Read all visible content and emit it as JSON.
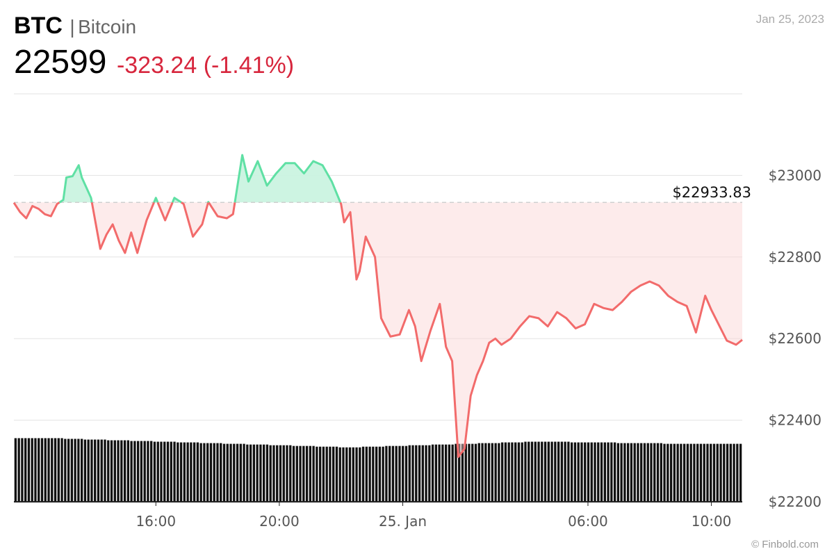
{
  "header": {
    "symbol": "BTC",
    "separator": "|",
    "name": "Bitcoin",
    "price": "22599",
    "change": "-323.24 (-1.41%)",
    "date": "Jan 25, 2023",
    "credit": "© Finbold.com"
  },
  "colors": {
    "up": "#5fe0a4",
    "up_fill": "#c8f3df",
    "down": "#f26b6b",
    "down_fill": "#fbd3d3",
    "change_text": "#d7263d"
  },
  "chart_data": {
    "type": "line",
    "ylim": [
      22200,
      23200
    ],
    "y_ticks": [
      22200,
      22400,
      22600,
      22800,
      23000
    ],
    "y_tick_labels": [
      "$22200",
      "$22400",
      "$22600",
      "$22800",
      "$23000"
    ],
    "x_tick_labels": [
      "16:00",
      "20:00",
      "25. Jan",
      "06:00",
      "10:00"
    ],
    "x_tick_hours": [
      16,
      20,
      24,
      30,
      34
    ],
    "x_range_hours": [
      11.4,
      35.0
    ],
    "reference_value": 22933.83,
    "reference_label": "$22933.83",
    "grid": true,
    "series": [
      {
        "x": [
          11.4,
          11.6,
          11.8,
          12.0,
          12.2,
          12.4,
          12.6,
          12.8,
          13.0,
          13.1,
          13.3,
          13.5,
          13.6,
          13.9,
          14.2,
          14.4,
          14.6,
          14.8,
          15.0,
          15.2,
          15.4,
          15.7,
          16.0,
          16.3,
          16.6,
          16.9,
          17.2,
          17.5,
          17.7,
          18.0,
          18.3,
          18.5,
          18.8,
          19.0,
          19.3,
          19.6,
          19.9,
          20.2,
          20.5,
          20.8,
          21.1,
          21.4,
          21.7,
          22.0,
          22.1,
          22.3,
          22.5,
          22.6,
          22.8,
          23.1,
          23.3,
          23.6,
          23.9,
          24.2,
          24.4,
          24.6,
          24.9,
          25.2,
          25.4,
          25.6,
          25.8,
          26.0,
          26.2,
          26.4,
          26.6,
          26.8,
          27.0,
          27.2,
          27.5,
          27.8,
          28.1,
          28.4,
          28.7,
          29.0,
          29.3,
          29.6,
          29.9,
          30.2,
          30.5,
          30.8,
          31.1,
          31.4,
          31.7,
          32.0,
          32.3,
          32.6,
          32.9,
          33.2,
          33.5,
          33.8,
          34.0,
          34.2,
          34.5,
          34.8,
          35.0
        ],
        "values": [
          22933,
          22910,
          22895,
          22925,
          22918,
          22905,
          22900,
          22930,
          22940,
          22995,
          22998,
          23025,
          22995,
          22945,
          22820,
          22855,
          22880,
          22840,
          22810,
          22860,
          22810,
          22890,
          22945,
          22890,
          22945,
          22930,
          22850,
          22880,
          22935,
          22900,
          22895,
          22905,
          23050,
          22985,
          23035,
          22975,
          23005,
          23030,
          23030,
          23005,
          23035,
          23025,
          22985,
          22930,
          22885,
          22910,
          22745,
          22765,
          22850,
          22800,
          22650,
          22605,
          22610,
          22670,
          22630,
          22545,
          22620,
          22685,
          22580,
          22545,
          22310,
          22330,
          22460,
          22510,
          22545,
          22590,
          22600,
          22585,
          22600,
          22630,
          22655,
          22650,
          22630,
          22665,
          22650,
          22625,
          22635,
          22685,
          22675,
          22670,
          22690,
          22715,
          22730,
          22740,
          22730,
          22705,
          22690,
          22680,
          22615,
          22705,
          22670,
          22640,
          22595,
          22585,
          22597
        ]
      }
    ],
    "volume_values": [
      78,
      78,
      78,
      78,
      78,
      78,
      78,
      78,
      78,
      78,
      78,
      78,
      78,
      78,
      78,
      77,
      77,
      77,
      77,
      77,
      77,
      76,
      76,
      76,
      76,
      76,
      76,
      76,
      75,
      75,
      75,
      75,
      75,
      75,
      75,
      74,
      74,
      74,
      74,
      74,
      74,
      74,
      73,
      73,
      73,
      73,
      73,
      73,
      73,
      72,
      72,
      72,
      72,
      72,
      72,
      72,
      71,
      71,
      71,
      71,
      71,
      71,
      71,
      70,
      70,
      70,
      70,
      70,
      70,
      70,
      69,
      69,
      69,
      69,
      69,
      69,
      69,
      68,
      68,
      68,
      68,
      68,
      68,
      68,
      67,
      67,
      67,
      67,
      67,
      67,
      67,
      66,
      66,
      66,
      66,
      66,
      66,
      66,
      65,
      65,
      65,
      65,
      65,
      65,
      65,
      66,
      66,
      66,
      66,
      66,
      66,
      66,
      67,
      67,
      67,
      67,
      67,
      67,
      67,
      68,
      68,
      68,
      68,
      68,
      68,
      68,
      69,
      69,
      69,
      69,
      69,
      69,
      69,
      70,
      70,
      70,
      70,
      70,
      70,
      70,
      71,
      71,
      71,
      71,
      71,
      71,
      71,
      72,
      72,
      72,
      72,
      72,
      72,
      72,
      73,
      73,
      73,
      73,
      73,
      73,
      73,
      73,
      73,
      73,
      73,
      73,
      73,
      73,
      72,
      72,
      72,
      72,
      72,
      72,
      72,
      72,
      72,
      72,
      72,
      72,
      72,
      72,
      71,
      71,
      71,
      71,
      71,
      71,
      71,
      71,
      71,
      71,
      71,
      71,
      71,
      71,
      70,
      70,
      70,
      70,
      70,
      70,
      70,
      70,
      70,
      70,
      70,
      70,
      70,
      70,
      70,
      70,
      70,
      70,
      70,
      70,
      70,
      70,
      70,
      70
    ]
  }
}
